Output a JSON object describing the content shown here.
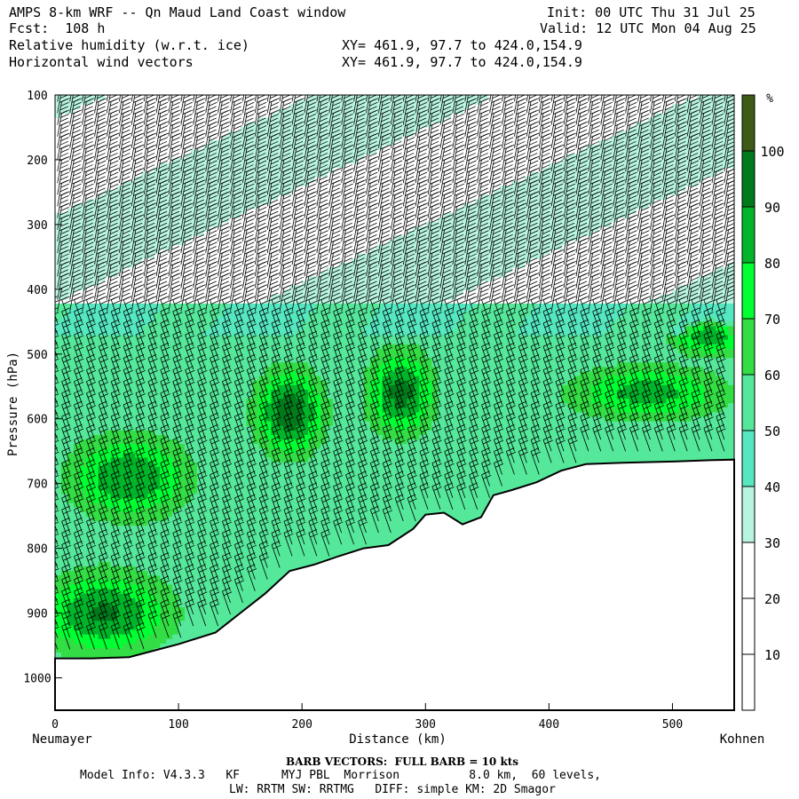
{
  "header": {
    "title": "AMPS 8-km WRF -- Qn Maud Land Coast window",
    "fcst": "Fcst:  108 h",
    "init": "Init: 00 UTC Thu 31 Jul 25",
    "valid": "Valid: 12 UTC Mon 04 Aug 25",
    "field1": "Relative humidity (w.r.t. ice)",
    "field2": "Horizontal wind vectors",
    "xy1": "XY= 461.9, 97.7 to 424.0,154.9",
    "xy2": "XY= 461.9, 97.7 to 424.0,154.9"
  },
  "footer": {
    "barb_note": "BARB VECTORS:  FULL BARB = 10 kts",
    "model_info": "Model Info: V4.3.3   KF      MYJ PBL  Morrison          8.0 km,  60 levels,",
    "model_info2": "LW: RRTM SW: RRTMG   DIFF: simple KM: 2D Smagor"
  },
  "chart_data": {
    "type": "heatmap",
    "xlabel": "Distance (km)",
    "ylabel": "Pressure (hPa)",
    "x_left_label": "Neumayer",
    "x_right_label": "Kohnen",
    "xlim": [
      0,
      550
    ],
    "ylim": [
      1050,
      100
    ],
    "x_ticks": [
      0,
      100,
      200,
      300,
      400,
      500
    ],
    "y_ticks": [
      100,
      200,
      300,
      400,
      500,
      600,
      700,
      800,
      900,
      1000
    ],
    "colorbar": {
      "unit": "%",
      "ticks": [
        10,
        20,
        30,
        40,
        50,
        60,
        70,
        80,
        90,
        100
      ],
      "levels": [
        {
          "from": 0,
          "to": 30,
          "color": "#ffffff"
        },
        {
          "from": 30,
          "to": 40,
          "color": "#b8f5e0"
        },
        {
          "from": 40,
          "to": 50,
          "color": "#55e8c0"
        },
        {
          "from": 50,
          "to": 60,
          "color": "#55e89a"
        },
        {
          "from": 60,
          "to": 70,
          "color": "#33dd44"
        },
        {
          "from": 70,
          "to": 80,
          "color": "#00ff33"
        },
        {
          "from": 80,
          "to": 90,
          "color": "#00b52a"
        },
        {
          "from": 90,
          "to": 100,
          "color": "#007a1a"
        },
        {
          "from": 100,
          "to": 110,
          "color": "#3d5a16"
        }
      ]
    },
    "terrain_surface_hpa": [
      [
        0,
        970
      ],
      [
        30,
        970
      ],
      [
        60,
        968
      ],
      [
        80,
        958
      ],
      [
        100,
        948
      ],
      [
        130,
        930
      ],
      [
        150,
        900
      ],
      [
        170,
        870
      ],
      [
        190,
        835
      ],
      [
        210,
        825
      ],
      [
        230,
        812
      ],
      [
        250,
        800
      ],
      [
        270,
        795
      ],
      [
        290,
        770
      ],
      [
        300,
        748
      ],
      [
        315,
        745
      ],
      [
        330,
        763
      ],
      [
        345,
        752
      ],
      [
        355,
        718
      ],
      [
        370,
        710
      ],
      [
        390,
        698
      ],
      [
        410,
        680
      ],
      [
        430,
        670
      ],
      [
        460,
        668
      ],
      [
        500,
        666
      ],
      [
        530,
        664
      ],
      [
        550,
        663
      ]
    ],
    "moist_regions": [
      {
        "x_center": 60,
        "p_center": 690,
        "x_halfwidth": 45,
        "p_halfwidth": 60,
        "max_rh": 90
      },
      {
        "x_center": 40,
        "p_center": 900,
        "x_halfwidth": 50,
        "p_halfwidth": 60,
        "max_rh": 92
      },
      {
        "x_center": 190,
        "p_center": 590,
        "x_halfwidth": 25,
        "p_halfwidth": 60,
        "max_rh": 100
      },
      {
        "x_center": 280,
        "p_center": 560,
        "x_halfwidth": 25,
        "p_halfwidth": 60,
        "max_rh": 95
      },
      {
        "x_center": 480,
        "p_center": 560,
        "x_halfwidth": 60,
        "p_halfwidth": 40,
        "max_rh": 85
      },
      {
        "x_center": 530,
        "p_center": 470,
        "x_halfwidth": 30,
        "p_halfwidth": 30,
        "max_rh": 90
      }
    ],
    "upper_moist_band": {
      "p_bottom": 450,
      "p_top": 100,
      "rh": 40
    }
  }
}
